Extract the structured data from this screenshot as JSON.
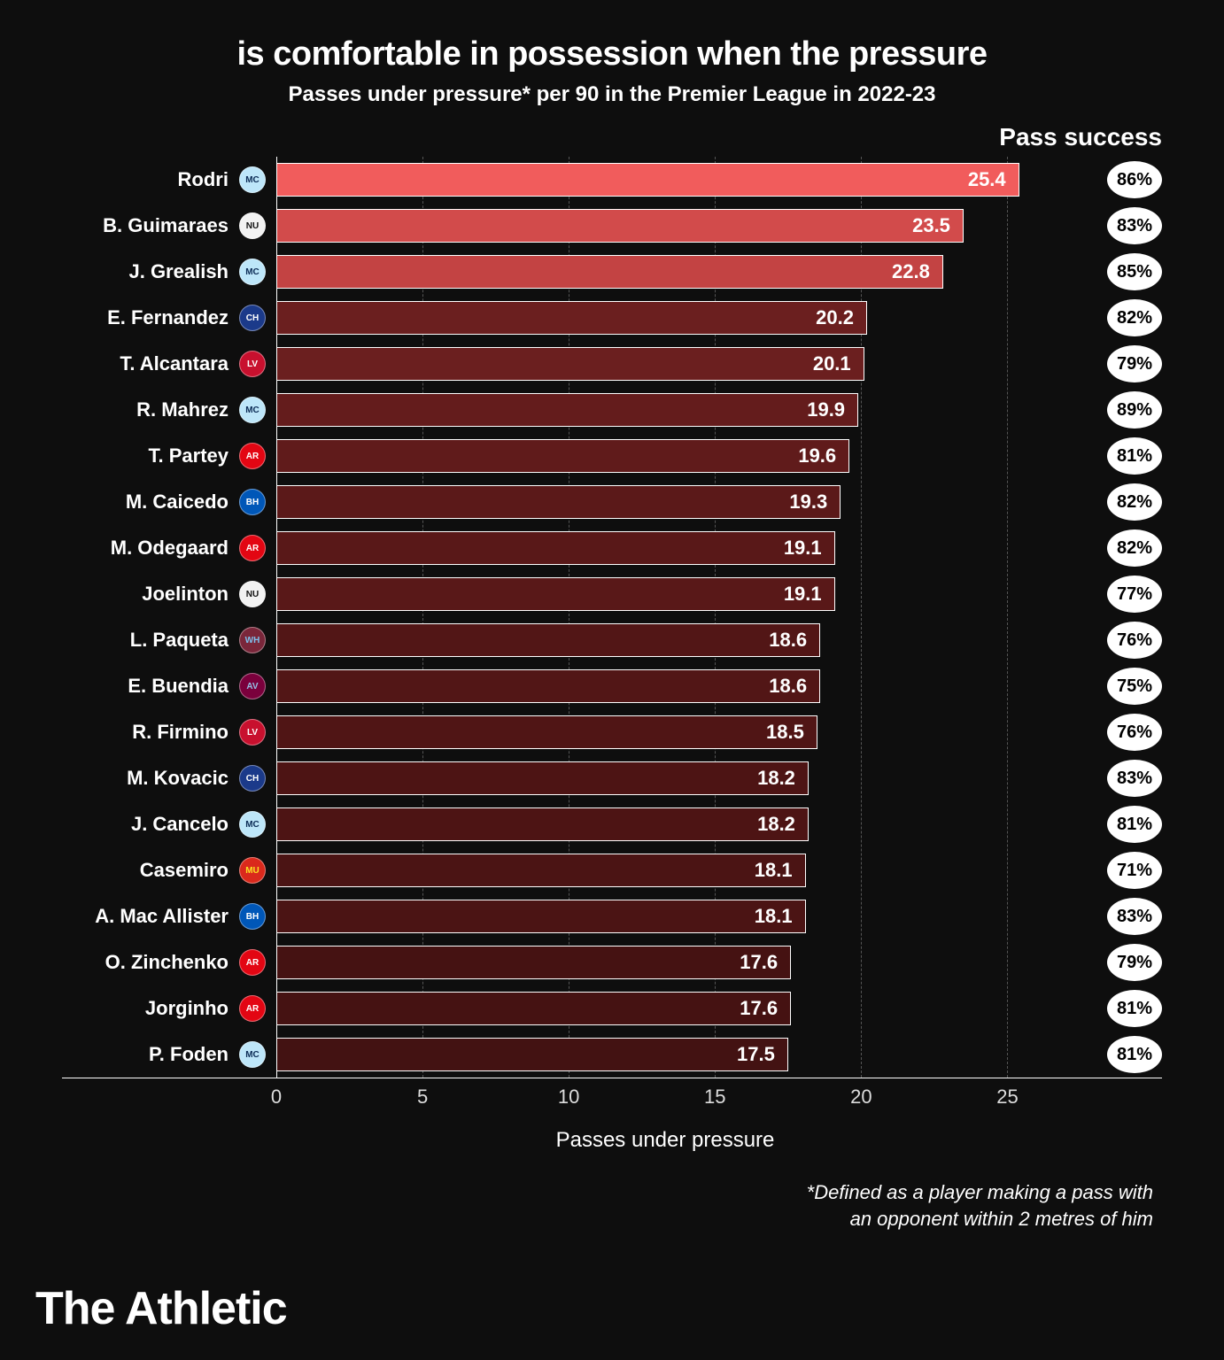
{
  "title": "is comfortable in possession when the pressure",
  "subtitle": "Passes under pressure* per 90 in the Premier League in 2022-23",
  "pass_success_header": "Pass success",
  "x_axis_label": "Passes under pressure",
  "footnote_line1": "*Defined as a player making a pass with",
  "footnote_line2": "an opponent within 2 metres of him",
  "brand": "The Athletic",
  "chart": {
    "type": "bar",
    "x_max": 27.5,
    "x_ticks": [
      0,
      5,
      10,
      15,
      20,
      25
    ],
    "bar_border_color": "#ffffff",
    "grid_color": "#555555",
    "background_color": "#0e0e0e",
    "label_fontsize": 22,
    "value_fontsize": 22
  },
  "players": [
    {
      "name": "Rodri",
      "value": 25.4,
      "success": "86%",
      "bar_color": "#f15c5c",
      "team_bg": "#bde6f9",
      "team_fg": "#0b2b55",
      "team_abbr": "MC"
    },
    {
      "name": "B. Guimaraes",
      "value": 23.5,
      "success": "83%",
      "bar_color": "#d24b4b",
      "team_bg": "#f2f2f2",
      "team_fg": "#111111",
      "team_abbr": "NU"
    },
    {
      "name": "J. Grealish",
      "value": 22.8,
      "success": "85%",
      "bar_color": "#c34343",
      "team_bg": "#bde6f9",
      "team_fg": "#0b2b55",
      "team_abbr": "MC"
    },
    {
      "name": "E. Fernandez",
      "value": 20.2,
      "success": "82%",
      "bar_color": "#6b1f1f",
      "team_bg": "#1b3a8a",
      "team_fg": "#ffffff",
      "team_abbr": "CH"
    },
    {
      "name": "T. Alcantara",
      "value": 20.1,
      "success": "79%",
      "bar_color": "#6b1f1f",
      "team_bg": "#c8102e",
      "team_fg": "#ffffff",
      "team_abbr": "LV"
    },
    {
      "name": "R. Mahrez",
      "value": 19.9,
      "success": "89%",
      "bar_color": "#641c1c",
      "team_bg": "#bde6f9",
      "team_fg": "#0b2b55",
      "team_abbr": "MC"
    },
    {
      "name": "T. Partey",
      "value": 19.6,
      "success": "81%",
      "bar_color": "#601b1b",
      "team_bg": "#e30613",
      "team_fg": "#ffffff",
      "team_abbr": "AR"
    },
    {
      "name": "M. Caicedo",
      "value": 19.3,
      "success": "82%",
      "bar_color": "#5b1919",
      "team_bg": "#0057b8",
      "team_fg": "#ffffff",
      "team_abbr": "BH"
    },
    {
      "name": "M. Odegaard",
      "value": 19.1,
      "success": "82%",
      "bar_color": "#591818",
      "team_bg": "#e30613",
      "team_fg": "#ffffff",
      "team_abbr": "AR"
    },
    {
      "name": "Joelinton",
      "value": 19.1,
      "success": "77%",
      "bar_color": "#591818",
      "team_bg": "#f2f2f2",
      "team_fg": "#111111",
      "team_abbr": "NU"
    },
    {
      "name": "L. Paqueta",
      "value": 18.6,
      "success": "76%",
      "bar_color": "#521616",
      "team_bg": "#7a263a",
      "team_fg": "#7ec0ee",
      "team_abbr": "WH"
    },
    {
      "name": "E. Buendia",
      "value": 18.6,
      "success": "75%",
      "bar_color": "#521616",
      "team_bg": "#7a003c",
      "team_fg": "#95bfe5",
      "team_abbr": "AV"
    },
    {
      "name": "R. Firmino",
      "value": 18.5,
      "success": "76%",
      "bar_color": "#501515",
      "team_bg": "#c8102e",
      "team_fg": "#ffffff",
      "team_abbr": "LV"
    },
    {
      "name": "M. Kovacic",
      "value": 18.2,
      "success": "83%",
      "bar_color": "#4d1414",
      "team_bg": "#1b3a8a",
      "team_fg": "#ffffff",
      "team_abbr": "CH"
    },
    {
      "name": "J. Cancelo",
      "value": 18.2,
      "success": "81%",
      "bar_color": "#4d1414",
      "team_bg": "#bde6f9",
      "team_fg": "#0b2b55",
      "team_abbr": "MC"
    },
    {
      "name": "Casemiro",
      "value": 18.1,
      "success": "71%",
      "bar_color": "#4b1414",
      "team_bg": "#da291c",
      "team_fg": "#fbe122",
      "team_abbr": "MU"
    },
    {
      "name": "A. Mac Allister",
      "value": 18.1,
      "success": "83%",
      "bar_color": "#4b1414",
      "team_bg": "#0057b8",
      "team_fg": "#ffffff",
      "team_abbr": "BH"
    },
    {
      "name": "O. Zinchenko",
      "value": 17.6,
      "success": "79%",
      "bar_color": "#451212",
      "team_bg": "#e30613",
      "team_fg": "#ffffff",
      "team_abbr": "AR"
    },
    {
      "name": "Jorginho",
      "value": 17.6,
      "success": "81%",
      "bar_color": "#451212",
      "team_bg": "#e30613",
      "team_fg": "#ffffff",
      "team_abbr": "AR"
    },
    {
      "name": "P. Foden",
      "value": 17.5,
      "success": "81%",
      "bar_color": "#431212",
      "team_bg": "#bde6f9",
      "team_fg": "#0b2b55",
      "team_abbr": "MC"
    }
  ]
}
